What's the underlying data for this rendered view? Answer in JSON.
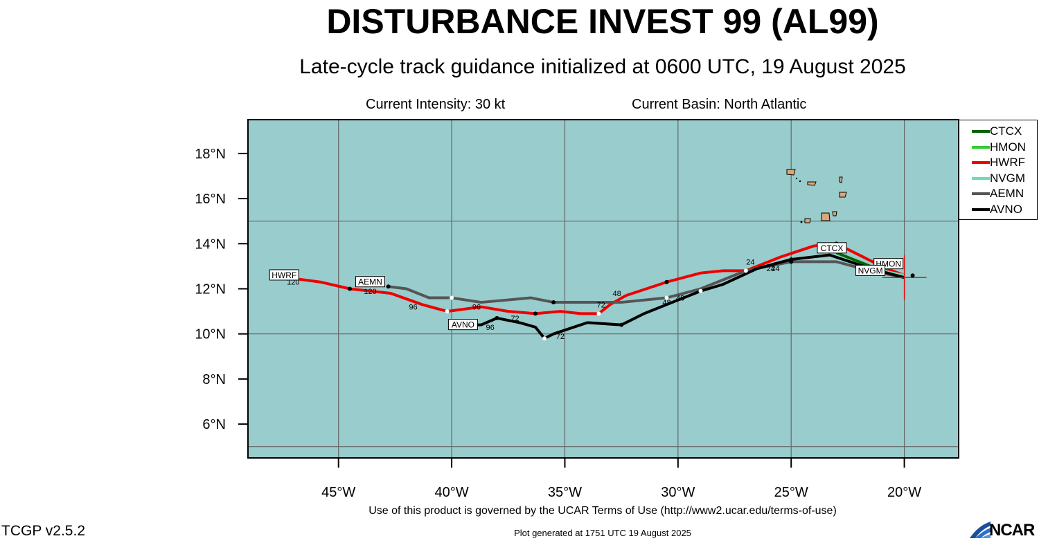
{
  "header": {
    "title": "DISTURBANCE INVEST 99 (AL99)",
    "subtitle": "Late-cycle track guidance initialized at 0600 UTC, 19 August 2025",
    "intensity": "Current Intensity: 30 kt",
    "basin": "Current Basin: North Atlantic"
  },
  "footer": {
    "terms": "Use of this product is governed by the UCAR Terms of Use (http://www2.ucar.edu/terms-of-use)",
    "version": "TCGP v2.5.2",
    "generated": "Plot generated at 1751 UTC   19 August 2025",
    "logo_text": "NCAR"
  },
  "map": {
    "lon_range": [
      -49,
      -17.6
    ],
    "lat_range": [
      4.5,
      19.5
    ],
    "background_color": "#99cccc",
    "lat_ticks": [
      {
        "value": 18,
        "label": "18°N"
      },
      {
        "value": 16,
        "label": "16°N"
      },
      {
        "value": 14,
        "label": "14°N"
      },
      {
        "value": 12,
        "label": "12°N"
      },
      {
        "value": 10,
        "label": "10°N"
      },
      {
        "value": 8,
        "label": "8°N"
      },
      {
        "value": 6,
        "label": "6°N"
      }
    ],
    "lon_ticks": [
      {
        "value": -45,
        "label": "45°W"
      },
      {
        "value": -40,
        "label": "40°W"
      },
      {
        "value": -35,
        "label": "35°W"
      },
      {
        "value": -30,
        "label": "30°W"
      },
      {
        "value": -25,
        "label": "25°W"
      },
      {
        "value": -20,
        "label": "20°W"
      }
    ],
    "gridlines_lon": [
      -45,
      -40,
      -35,
      -30,
      -25,
      -20
    ],
    "gridlines_lat": [
      15,
      10,
      5
    ],
    "current_position": {
      "lon": -20.0,
      "lat": 12.5
    }
  },
  "chart_data": {
    "type": "line",
    "legend_placement": "right-top",
    "series": [
      {
        "name": "CTCX",
        "color": "#006400",
        "points": [
          [
            -20.0,
            12.5
          ],
          [
            -21.5,
            13.0
          ],
          [
            -23.0,
            13.6
          ]
        ],
        "end_label": "CTCX"
      },
      {
        "name": "HMON",
        "color": "#33cc33",
        "points": [
          [
            -20.0,
            12.6
          ],
          [
            -21.2,
            13.0
          ]
        ],
        "end_label": "HMON"
      },
      {
        "name": "HWRF",
        "color": "#ee0000",
        "points": [
          [
            -20.0,
            12.6
          ],
          [
            -20.8,
            12.9
          ],
          [
            -22.0,
            13.5
          ],
          [
            -23.0,
            14.0
          ],
          [
            -24.0,
            13.9
          ],
          [
            -25.5,
            13.4
          ],
          [
            -27.0,
            12.8
          ],
          [
            -28.0,
            12.8
          ],
          [
            -29.0,
            12.7
          ],
          [
            -30.5,
            12.3
          ],
          [
            -32.3,
            11.7
          ],
          [
            -33.0,
            11.3
          ],
          [
            -33.5,
            10.9
          ],
          [
            -34.3,
            10.9
          ],
          [
            -35.2,
            11.0
          ],
          [
            -36.3,
            10.9
          ],
          [
            -37.5,
            11.0
          ],
          [
            -38.7,
            11.2
          ],
          [
            -40.2,
            11.0
          ],
          [
            -41.3,
            11.3
          ],
          [
            -42.7,
            11.8
          ],
          [
            -44.5,
            12.0
          ],
          [
            -45.8,
            12.3
          ],
          [
            -47.3,
            12.5
          ]
        ],
        "end_label": "HWRF",
        "hour_labels": [
          {
            "lon": -26.8,
            "lat": 13.2,
            "text": "24"
          },
          {
            "lon": -32.7,
            "lat": 11.8,
            "text": "48"
          },
          {
            "lon": -33.4,
            "lat": 11.3,
            "text": "72"
          },
          {
            "lon": -37.2,
            "lat": 10.7,
            "text": "72"
          },
          {
            "lon": -41.7,
            "lat": 11.2,
            "text": "96"
          },
          {
            "lon": -47.0,
            "lat": 12.3,
            "text": "120"
          }
        ]
      },
      {
        "name": "NVGM",
        "color": "#66ddbb",
        "points": [
          [
            -20.0,
            12.6
          ],
          [
            -21.0,
            12.8
          ]
        ],
        "end_label": "NVGM"
      },
      {
        "name": "AEMN",
        "color": "#555555",
        "points": [
          [
            -20.0,
            12.5
          ],
          [
            -21.5,
            12.8
          ],
          [
            -23.0,
            13.2
          ],
          [
            -25.0,
            13.2
          ],
          [
            -27.0,
            12.8
          ],
          [
            -29.0,
            12.0
          ],
          [
            -30.5,
            11.6
          ],
          [
            -32.5,
            11.4
          ],
          [
            -34.0,
            11.4
          ],
          [
            -35.5,
            11.4
          ],
          [
            -36.5,
            11.6
          ],
          [
            -38.7,
            11.4
          ],
          [
            -40.0,
            11.6
          ],
          [
            -41.0,
            11.6
          ],
          [
            -42.0,
            12.0
          ],
          [
            -42.8,
            12.1
          ]
        ],
        "end_label": "AEMN",
        "hour_labels": [
          {
            "lon": -25.7,
            "lat": 12.9,
            "text": "24"
          },
          {
            "lon": -29.9,
            "lat": 11.6,
            "text": "48"
          },
          {
            "lon": -38.9,
            "lat": 11.2,
            "text": "96"
          },
          {
            "lon": -43.6,
            "lat": 11.9,
            "text": "120"
          }
        ]
      },
      {
        "name": "AVNO",
        "color": "#000000",
        "points": [
          [
            -20.0,
            12.5
          ],
          [
            -21.5,
            12.9
          ],
          [
            -23.3,
            13.5
          ],
          [
            -25.0,
            13.3
          ],
          [
            -26.5,
            12.9
          ],
          [
            -28.0,
            12.2
          ],
          [
            -29.0,
            11.9
          ],
          [
            -30.5,
            11.3
          ],
          [
            -31.5,
            10.9
          ],
          [
            -32.5,
            10.4
          ],
          [
            -34.0,
            10.5
          ],
          [
            -35.5,
            10.0
          ],
          [
            -35.9,
            9.8
          ],
          [
            -36.3,
            10.3
          ],
          [
            -37.0,
            10.5
          ],
          [
            -38.0,
            10.7
          ],
          [
            -38.7,
            10.4
          ],
          [
            -39.3,
            10.4
          ]
        ],
        "end_label": "AVNO",
        "hour_labels": [
          {
            "lon": -25.9,
            "lat": 12.9,
            "text": "24"
          },
          {
            "lon": -30.5,
            "lat": 11.4,
            "text": "48"
          },
          {
            "lon": -35.2,
            "lat": 9.9,
            "text": "72"
          },
          {
            "lon": -38.3,
            "lat": 10.3,
            "text": "96"
          }
        ]
      }
    ]
  }
}
